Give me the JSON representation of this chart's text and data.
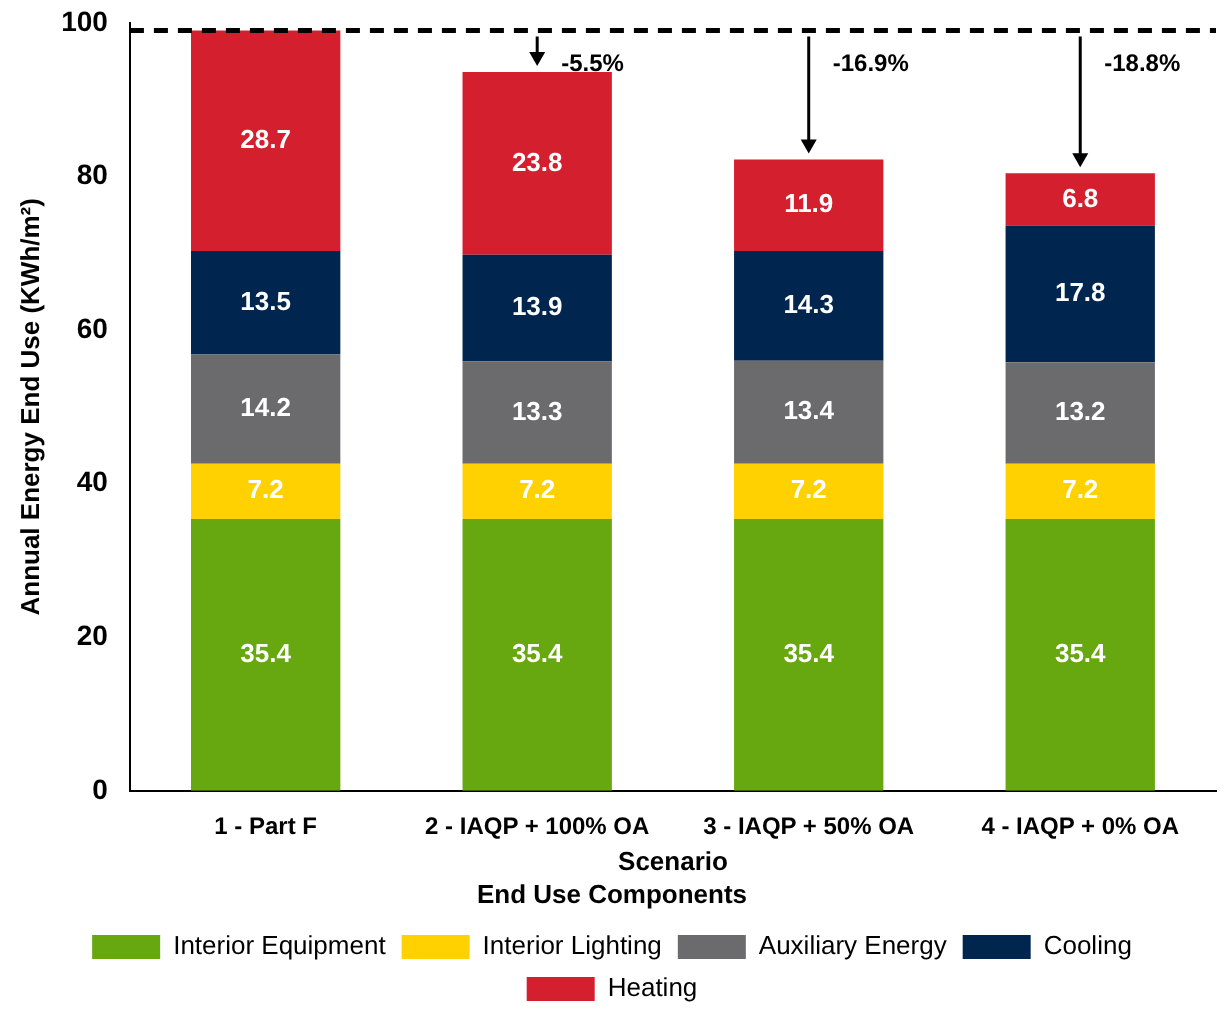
{
  "chart_data": {
    "type": "bar",
    "stacked": true,
    "xlabel": "Scenario",
    "ylabel": "Annual Energy End Use (KWh/m²)",
    "legend_title": "End Use Components",
    "legend": "bottom",
    "grid": false,
    "data_labels": true,
    "categories": [
      "1 - Part F",
      "2 - IAQP + 100% OA",
      "3 - IAQP + 50% OA",
      "4 - IAQP + 0% OA"
    ],
    "ylim": [
      0,
      100
    ],
    "yticks": [
      0,
      20,
      40,
      60,
      80,
      100
    ],
    "series": [
      {
        "name": "Interior Equipment",
        "color": "#67a70f",
        "values": [
          35.4,
          35.4,
          35.4,
          35.4
        ]
      },
      {
        "name": "Interior Lighting",
        "color": "#ffd100",
        "values": [
          7.2,
          7.2,
          7.2,
          7.2
        ]
      },
      {
        "name": "Auxiliary Energy",
        "color": "#6b6b6e",
        "values": [
          14.2,
          13.3,
          13.4,
          13.2
        ]
      },
      {
        "name": "Cooling",
        "color": "#00264f",
        "values": [
          13.5,
          13.9,
          14.3,
          17.8
        ]
      },
      {
        "name": "Heating",
        "color": "#d41f2e",
        "values": [
          28.7,
          23.8,
          11.9,
          6.8
        ]
      }
    ],
    "ref_lines": [
      {
        "axis": "y",
        "value": 99,
        "color": "#000000",
        "line_style": "dashed"
      }
    ],
    "annotations": [
      {
        "text": "-5.5%",
        "x": "2 - IAQP + 100% OA",
        "y": 93.6
      },
      {
        "text": "-16.9%",
        "x": "3 - IAQP + 50% OA",
        "y": 82.2
      },
      {
        "text": "-18.8%",
        "x": "4 - IAQP + 0% OA",
        "y": 80.4
      }
    ]
  }
}
